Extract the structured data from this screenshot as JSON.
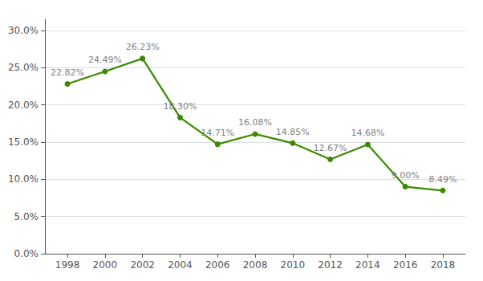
{
  "chart_data": {
    "type": "line",
    "x": [
      1998,
      2000,
      2002,
      2004,
      2006,
      2008,
      2010,
      2012,
      2014,
      2016,
      2018
    ],
    "values": [
      22.82,
      24.49,
      26.23,
      18.3,
      14.71,
      16.08,
      14.85,
      12.67,
      14.68,
      9.0,
      8.49
    ],
    "data_labels": true,
    "value_labels": [
      "22.82%",
      "24.49%",
      "26.23%",
      "18.30%",
      "14.71%",
      "16.08%",
      "14.85%",
      "12.67%",
      "14.68%",
      "9.00%",
      "8.49%"
    ],
    "color": "#3B8A00",
    "marker": "circle",
    "xlim": [
      1996.8,
      2019.2
    ],
    "xticks": [
      1998,
      2000,
      2002,
      2004,
      2006,
      2008,
      2010,
      2012,
      2014,
      2016,
      2018
    ],
    "ylim": [
      0.0,
      31.5
    ],
    "yticks": [
      {
        "value": 0.0,
        "label": "0.0%"
      },
      {
        "value": 5.0,
        "label": "5.0%"
      },
      {
        "value": 10.0,
        "label": "10.0%"
      },
      {
        "value": 15.0,
        "label": "15.0%"
      },
      {
        "value": 20.0,
        "label": "20.0%"
      },
      {
        "value": 25.0,
        "label": "25.0%"
      },
      {
        "value": 30.0,
        "label": "30.0%"
      }
    ],
    "grid": true
  }
}
